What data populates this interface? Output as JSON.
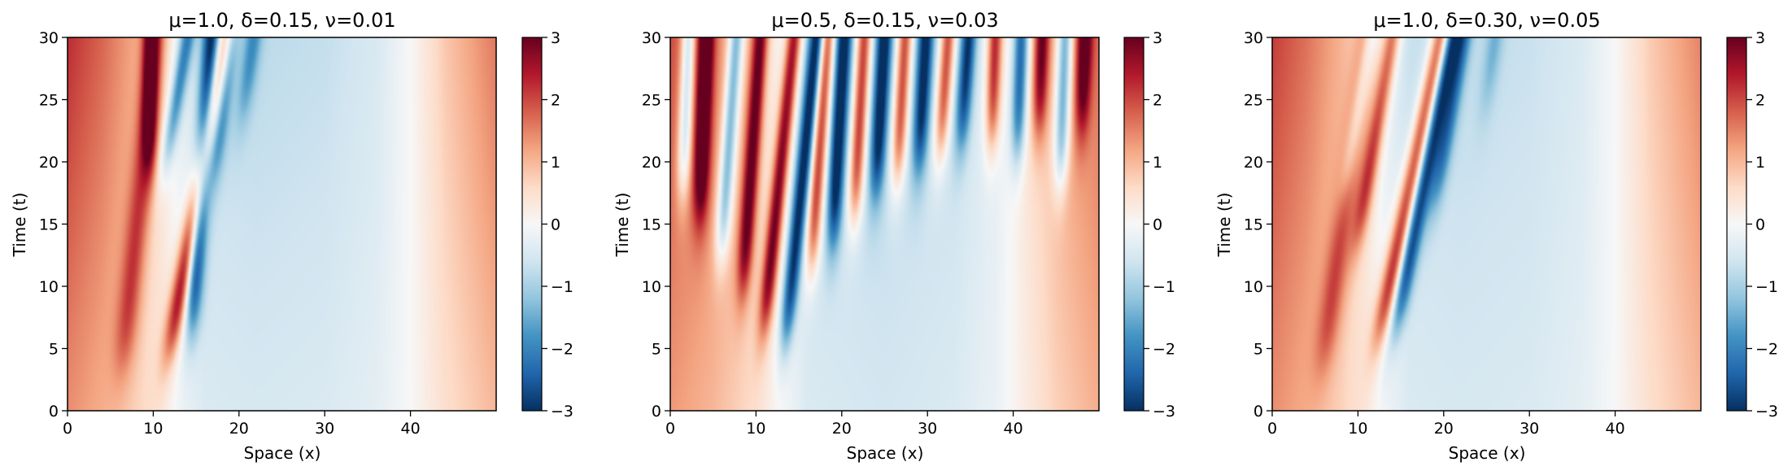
{
  "chart_data": [
    {
      "type": "heatmap",
      "title": "μ=1.0, δ=0.15, ν=0.01",
      "xlabel": "Space (x)",
      "ylabel": "Time (t)",
      "xlim": [
        0,
        50
      ],
      "ylim": [
        0,
        30
      ],
      "xticks": [
        "0",
        "10",
        "20",
        "30",
        "40"
      ],
      "yticks": [
        "0",
        "5",
        "10",
        "15",
        "20",
        "25",
        "30"
      ],
      "colorbar": {
        "range": [
          -3,
          3
        ],
        "ticks": [
          "−3",
          "−2",
          "−1",
          "0",
          "1",
          "2",
          "3"
        ],
        "colormap": "RdBu_r"
      },
      "field": {
        "base": [
          [
            0,
            1.4
          ],
          [
            4,
            1.1
          ],
          [
            8,
            0.7
          ],
          [
            11,
            0.3
          ],
          [
            13,
            -0.1
          ],
          [
            16,
            -0.45
          ],
          [
            22,
            -0.5
          ],
          [
            30,
            -0.45
          ],
          [
            36,
            -0.3
          ],
          [
            40,
            0.0
          ],
          [
            44,
            0.5
          ],
          [
            50,
            1.0
          ]
        ],
        "growth": 0.6,
        "waves": [
          {
            "x0": 14.5,
            "slope": 0.1,
            "sign": -1,
            "amp": 2.6,
            "width": 1.0,
            "t0": 7.0
          },
          {
            "x0": 12.0,
            "slope": 0.26,
            "sign": 1,
            "amp": 2.8,
            "width": 1.1,
            "t0": 5.0
          },
          {
            "x0": 9.5,
            "slope": 0.02,
            "sign": 1,
            "amp": 2.3,
            "width": 0.9,
            "t0": 20.0
          },
          {
            "x0": 11.5,
            "slope": 0.25,
            "sign": -1,
            "amp": 1.8,
            "width": 0.9,
            "t0": 20.0
          },
          {
            "x0": 6.5,
            "slope": 0.15,
            "sign": 1,
            "amp": 1.3,
            "width": 1.3,
            "t0": 4.0
          },
          {
            "x0": 17.0,
            "slope": 0.18,
            "sign": -1,
            "amp": 1.9,
            "width": 1.0,
            "t0": 19.0
          },
          {
            "x0": 20.5,
            "slope": 0.2,
            "sign": -1,
            "amp": 1.2,
            "width": 1.0,
            "t0": 24.0
          }
        ]
      }
    },
    {
      "type": "heatmap",
      "title": "μ=0.5, δ=0.15, ν=0.03",
      "xlabel": "Space (x)",
      "ylabel": "Time (t)",
      "xlim": [
        0,
        50
      ],
      "ylim": [
        0,
        30
      ],
      "xticks": [
        "0",
        "10",
        "20",
        "30",
        "40"
      ],
      "yticks": [
        "0",
        "5",
        "10",
        "15",
        "20",
        "25",
        "30"
      ],
      "colorbar": {
        "range": [
          -3,
          3
        ],
        "ticks": [
          "−3",
          "−2",
          "−1",
          "0",
          "1",
          "2",
          "3"
        ],
        "colormap": "RdBu_r"
      },
      "field": {
        "base": [
          [
            0,
            1.3
          ],
          [
            5,
            1.0
          ],
          [
            10,
            0.5
          ],
          [
            13,
            0.0
          ],
          [
            16,
            -0.45
          ],
          [
            25,
            -0.55
          ],
          [
            33,
            -0.45
          ],
          [
            38,
            -0.2
          ],
          [
            41,
            0.2
          ],
          [
            45,
            0.7
          ],
          [
            50,
            1.1
          ]
        ],
        "growth": 0.5,
        "waves": [
          {
            "x0": 13.5,
            "slope": 0.15,
            "sign": -1,
            "amp": 2.8,
            "width": 0.9,
            "t0": 6.0
          },
          {
            "x0": 11.0,
            "slope": 0.15,
            "sign": 1,
            "amp": 2.8,
            "width": 0.9,
            "t0": 7.0
          },
          {
            "x0": 8.5,
            "slope": 0.1,
            "sign": 1,
            "amp": 2.5,
            "width": 0.9,
            "t0": 10.0
          },
          {
            "x0": 6.0,
            "slope": 0.1,
            "sign": -1,
            "amp": 2.4,
            "width": 0.9,
            "t0": 13.0
          },
          {
            "x0": 3.5,
            "slope": 0.05,
            "sign": 1,
            "amp": 2.6,
            "width": 0.9,
            "t0": 16.0
          },
          {
            "x0": 1.5,
            "slope": 0.05,
            "sign": -1,
            "amp": 2.2,
            "width": 0.8,
            "t0": 18.0
          },
          {
            "x0": 16.5,
            "slope": 0.1,
            "sign": 1,
            "amp": 2.7,
            "width": 0.9,
            "t0": 12.0
          },
          {
            "x0": 19.0,
            "slope": 0.08,
            "sign": -1,
            "amp": 2.8,
            "width": 0.9,
            "t0": 14.0
          },
          {
            "x0": 21.5,
            "slope": 0.08,
            "sign": 1,
            "amp": 2.8,
            "width": 0.9,
            "t0": 16.0
          },
          {
            "x0": 24.0,
            "slope": 0.08,
            "sign": -1,
            "amp": 2.7,
            "width": 0.9,
            "t0": 18.0
          },
          {
            "x0": 26.5,
            "slope": 0.08,
            "sign": 1,
            "amp": 2.7,
            "width": 0.9,
            "t0": 19.0
          },
          {
            "x0": 29.0,
            "slope": 0.08,
            "sign": -1,
            "amp": 2.6,
            "width": 0.9,
            "t0": 20.0
          },
          {
            "x0": 31.5,
            "slope": 0.1,
            "sign": 1,
            "amp": 2.6,
            "width": 0.9,
            "t0": 21.0
          },
          {
            "x0": 34.0,
            "slope": 0.1,
            "sign": -1,
            "amp": 2.5,
            "width": 0.9,
            "t0": 22.0
          },
          {
            "x0": 37.5,
            "slope": 0.05,
            "sign": 1,
            "amp": 2.6,
            "width": 0.9,
            "t0": 22.0
          },
          {
            "x0": 40.5,
            "slope": 0.05,
            "sign": -1,
            "amp": 2.6,
            "width": 0.9,
            "t0": 21.0
          },
          {
            "x0": 43.0,
            "slope": 0.05,
            "sign": 1,
            "amp": 2.4,
            "width": 0.9,
            "t0": 23.0
          },
          {
            "x0": 45.5,
            "slope": 0.05,
            "sign": -1,
            "amp": 2.5,
            "width": 0.9,
            "t0": 19.0
          },
          {
            "x0": 48.0,
            "slope": 0.05,
            "sign": 1,
            "amp": 2.2,
            "width": 0.9,
            "t0": 23.0
          }
        ]
      }
    },
    {
      "type": "heatmap",
      "title": "μ=1.0, δ=0.30, ν=0.05",
      "xlabel": "Space (x)",
      "ylabel": "Time (t)",
      "xlim": [
        0,
        50
      ],
      "ylim": [
        0,
        30
      ],
      "xticks": [
        "0",
        "10",
        "20",
        "30",
        "40"
      ],
      "yticks": [
        "0",
        "5",
        "10",
        "15",
        "20",
        "25",
        "30"
      ],
      "colorbar": {
        "range": [
          -3,
          3
        ],
        "ticks": [
          "−3",
          "−2",
          "−1",
          "0",
          "1",
          "2",
          "3"
        ],
        "colormap": "RdBu_r"
      },
      "field": {
        "base": [
          [
            0,
            1.4
          ],
          [
            4,
            1.1
          ],
          [
            8,
            0.7
          ],
          [
            11,
            0.3
          ],
          [
            13,
            -0.1
          ],
          [
            16,
            -0.45
          ],
          [
            22,
            -0.5
          ],
          [
            30,
            -0.45
          ],
          [
            36,
            -0.3
          ],
          [
            40,
            0.0
          ],
          [
            44,
            0.5
          ],
          [
            50,
            1.0
          ]
        ],
        "growth": 0.5,
        "waves": [
          {
            "x0": 14.5,
            "slope": 0.28,
            "sign": -1,
            "amp": 2.4,
            "width": 1.0,
            "t0": 7.0
          },
          {
            "x0": 12.5,
            "slope": 0.3,
            "sign": 1,
            "amp": 2.6,
            "width": 1.1,
            "t0": 6.0
          },
          {
            "x0": 10.0,
            "slope": 0.25,
            "sign": 1,
            "amp": 1.9,
            "width": 1.0,
            "t0": 14.0
          },
          {
            "x0": 8.5,
            "slope": 0.25,
            "sign": -1,
            "amp": 1.3,
            "width": 0.9,
            "t0": 18.0
          },
          {
            "x0": 6.0,
            "slope": 0.2,
            "sign": 1,
            "amp": 1.2,
            "width": 1.3,
            "t0": 4.0
          },
          {
            "x0": 19.0,
            "slope": 0.25,
            "sign": -1,
            "amp": 1.7,
            "width": 1.0,
            "t0": 17.0
          },
          {
            "x0": 25.0,
            "slope": 0.2,
            "sign": -1,
            "amp": 0.8,
            "width": 1.0,
            "t0": 25.0
          }
        ]
      }
    }
  ]
}
